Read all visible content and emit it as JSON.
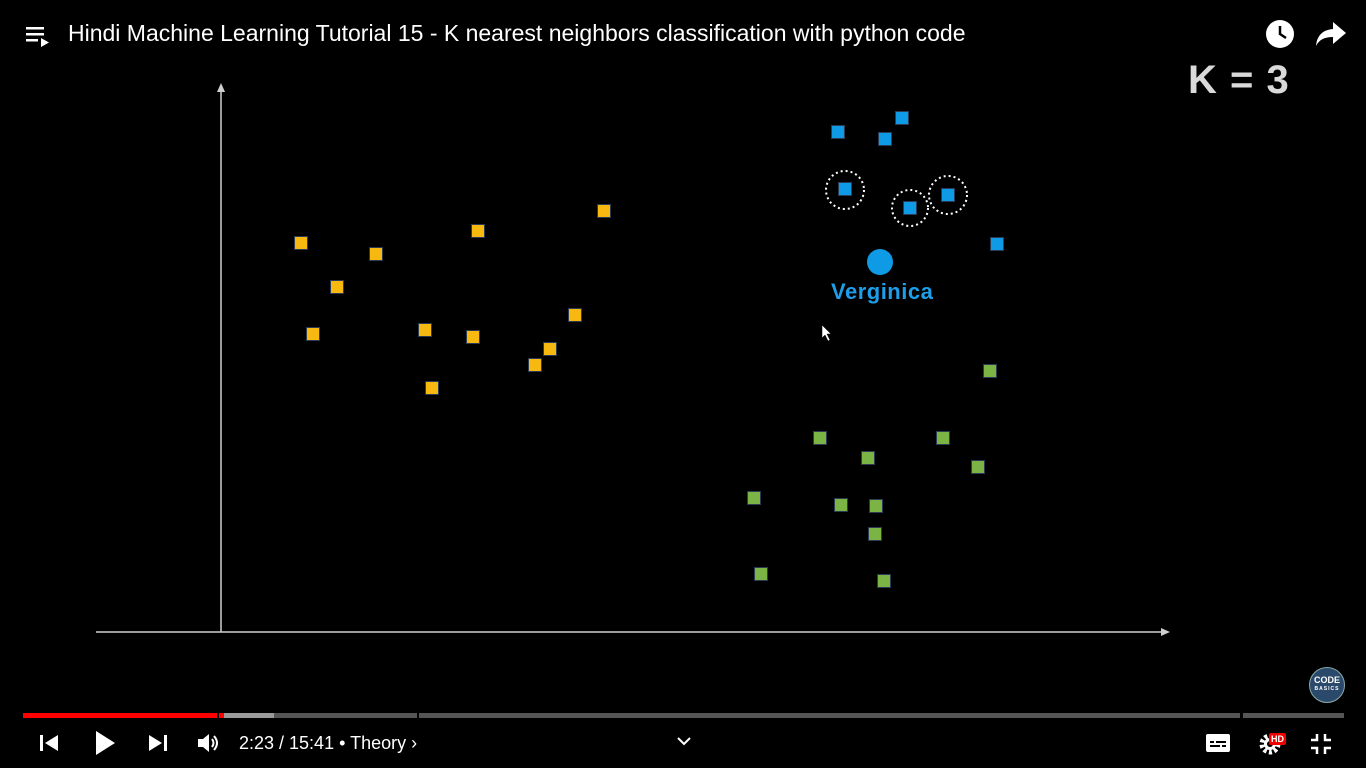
{
  "title": "Hindi Machine Learning Tutorial 15 - K nearest neighbors classification with python code",
  "icons": {
    "playlist": "playlist-icon",
    "watch_later": "clock-icon",
    "share": "share-icon",
    "prev": "skip-previous-icon",
    "play": "play-icon",
    "next": "skip-next-icon",
    "volume": "volume-icon",
    "chapter_chevron": "chevron-down-icon",
    "captions": "captions-icon",
    "settings": "gear-icon",
    "exit_fullscreen": "exit-fullscreen-icon"
  },
  "video": {
    "k_label": "K = 3",
    "predicted_label": "Verginica",
    "logo_text": "CODE",
    "logo_subtext": "BASICS",
    "colors": {
      "yellow": "#f7b90f",
      "blue": "#0f9ae6",
      "green": "#7bb345",
      "predicted": "#0f9ae6",
      "label": "#1e9ee8"
    }
  },
  "player": {
    "time": "2:23 / 15:41",
    "chapter": "• Theory ›",
    "hd_badge": "HD",
    "played_fraction": 0.152,
    "buffered_fraction": 0.19,
    "colors": {
      "played": "#f00",
      "buffered": "#9a9a9a",
      "track": "#555"
    }
  }
}
